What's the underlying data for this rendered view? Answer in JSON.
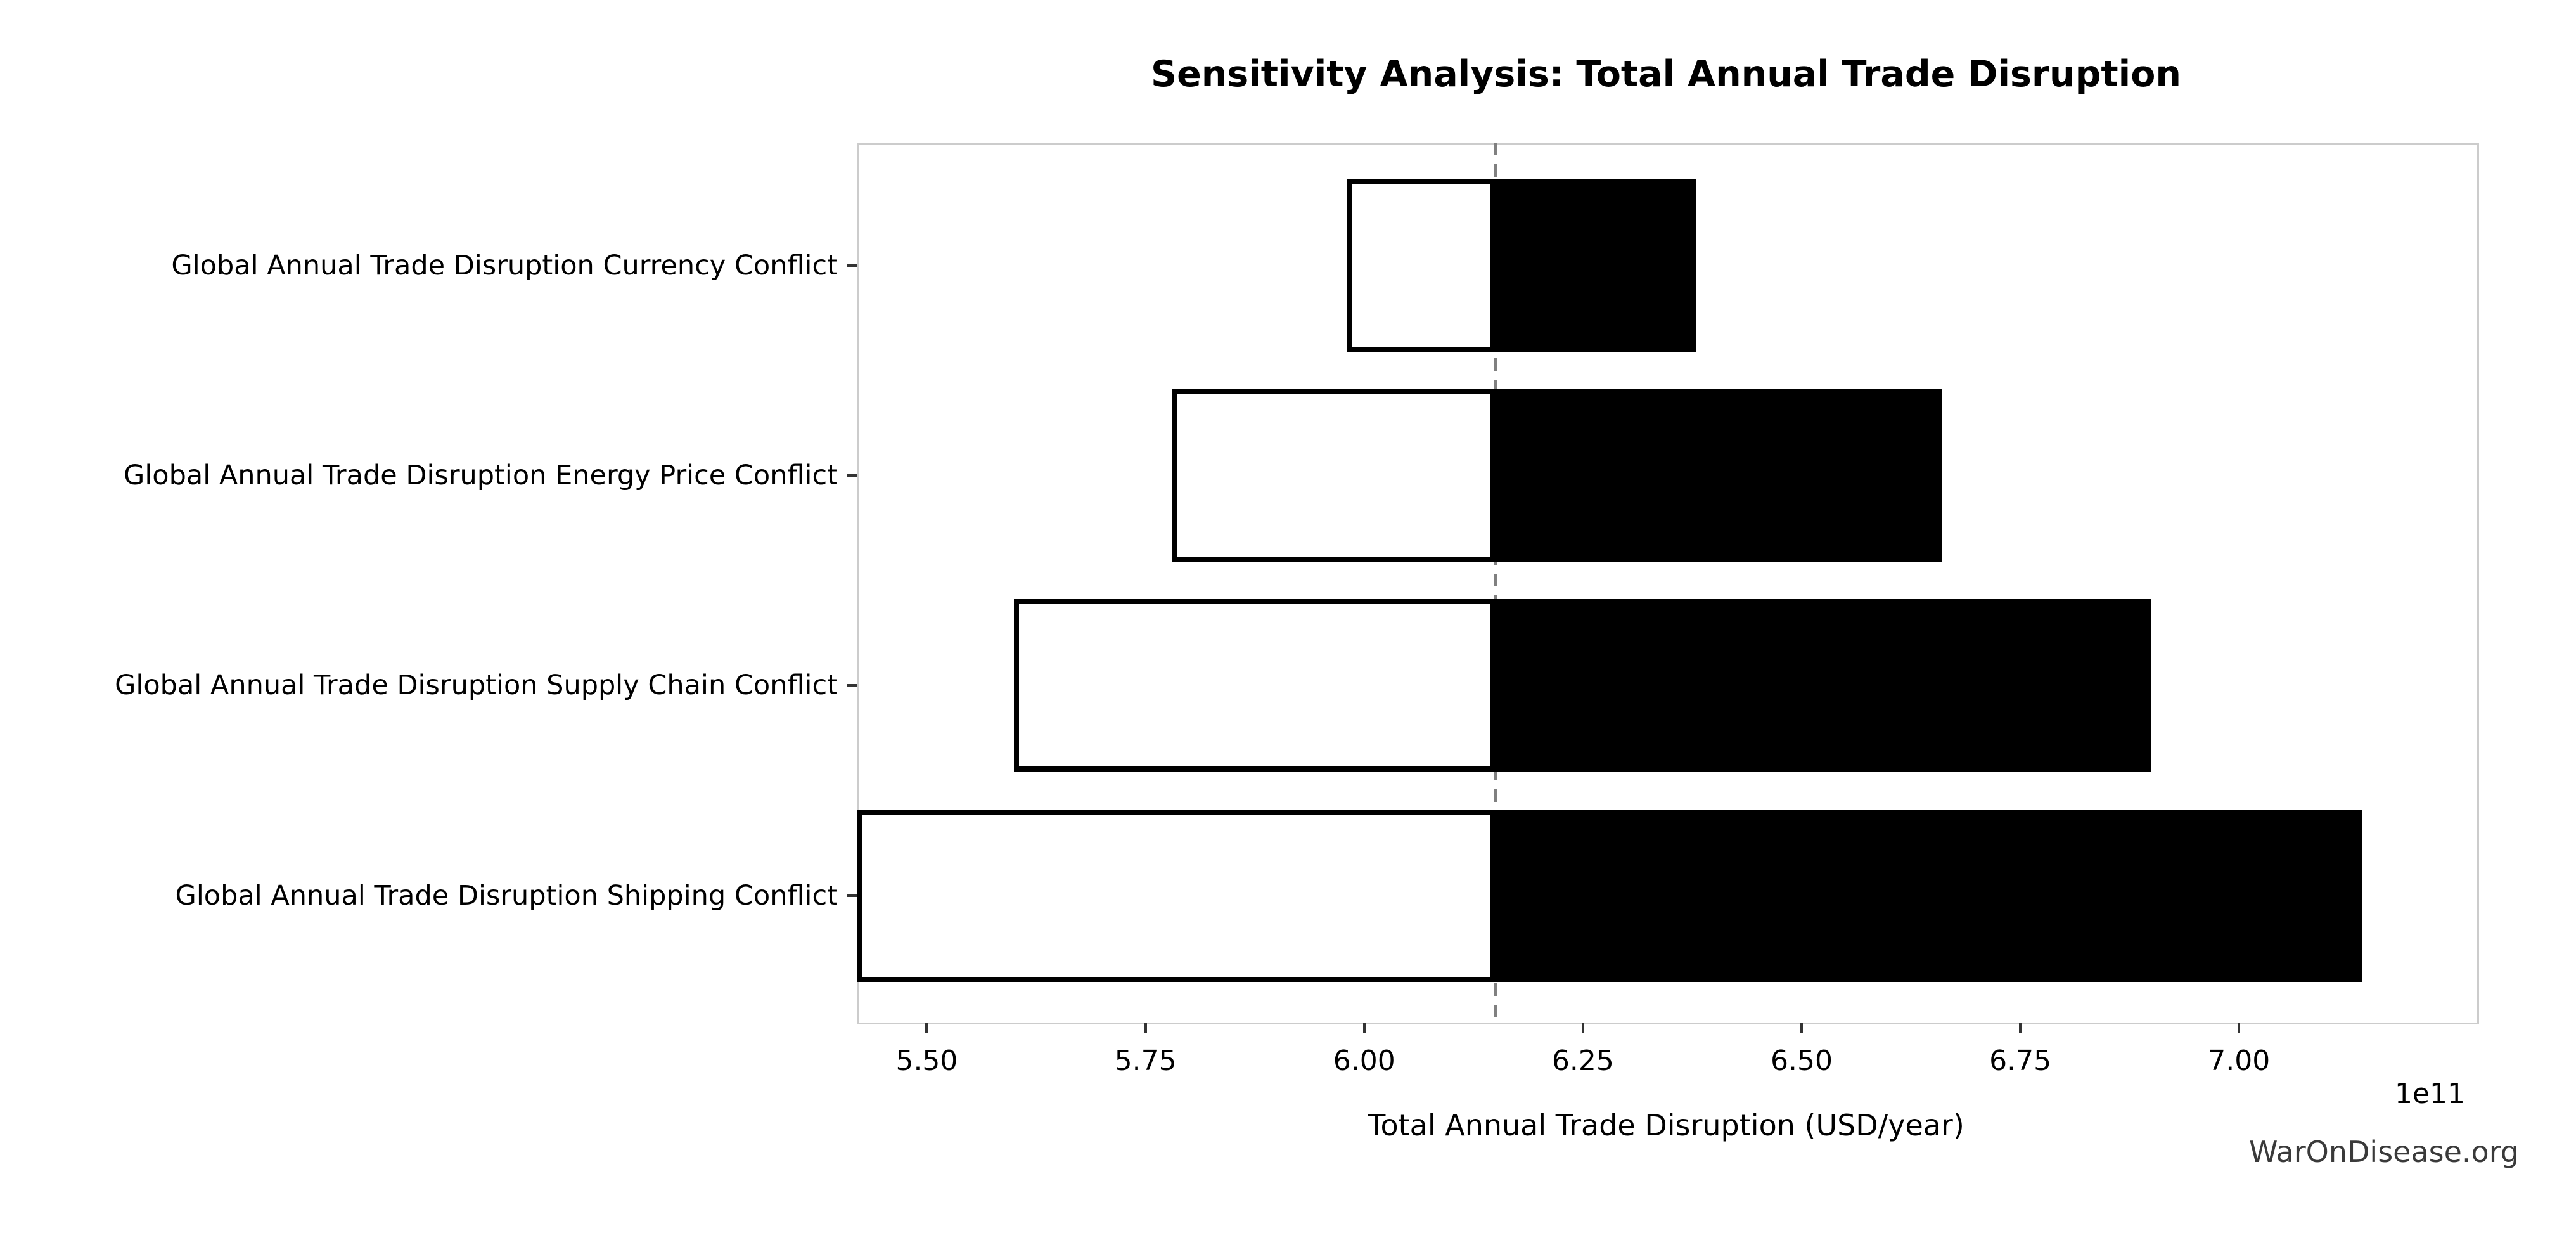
{
  "title": "Sensitivity Analysis: Total Annual Trade Disruption",
  "watermark": "WarOnDisease.org",
  "colors": {
    "low_bar_fill": "#ffffff",
    "high_bar_fill": "#000000",
    "bar_edge": "#000000",
    "baseline_dash": "#808080",
    "spine": "#cccccc",
    "tick_mark": "#333333",
    "text": "#000000",
    "watermark_text": "#3a3a3a"
  },
  "chart_data": {
    "type": "bar",
    "orientation": "horizontal",
    "subtype": "tornado-sensitivity",
    "title": "Sensitivity Analysis: Total Annual Trade Disruption",
    "xlabel": "Total Annual Trade Disruption (USD/year)",
    "x_scale_label": "1e11",
    "values_unit": "1e11 USD/year",
    "xlim": [
      5.42,
      7.27
    ],
    "xticks": [
      5.5,
      5.75,
      6.0,
      6.25,
      6.5,
      6.75,
      7.0
    ],
    "xtick_labels": [
      "5.50",
      "5.75",
      "6.00",
      "6.25",
      "6.50",
      "6.75",
      "7.00"
    ],
    "baseline_value": 6.15,
    "grid": false,
    "legend": "none",
    "categories": [
      "Global Annual Trade Disruption Currency Conflict",
      "Global Annual Trade Disruption Energy Price Conflict",
      "Global Annual Trade Disruption Supply Chain Conflict",
      "Global Annual Trade Disruption Shipping Conflict"
    ],
    "series": [
      {
        "name": "low-case-white-bar",
        "values": [
          5.98,
          5.78,
          5.6,
          5.42
        ]
      },
      {
        "name": "high-case-black-bar",
        "values": [
          6.38,
          6.66,
          6.9,
          7.14
        ]
      }
    ]
  }
}
